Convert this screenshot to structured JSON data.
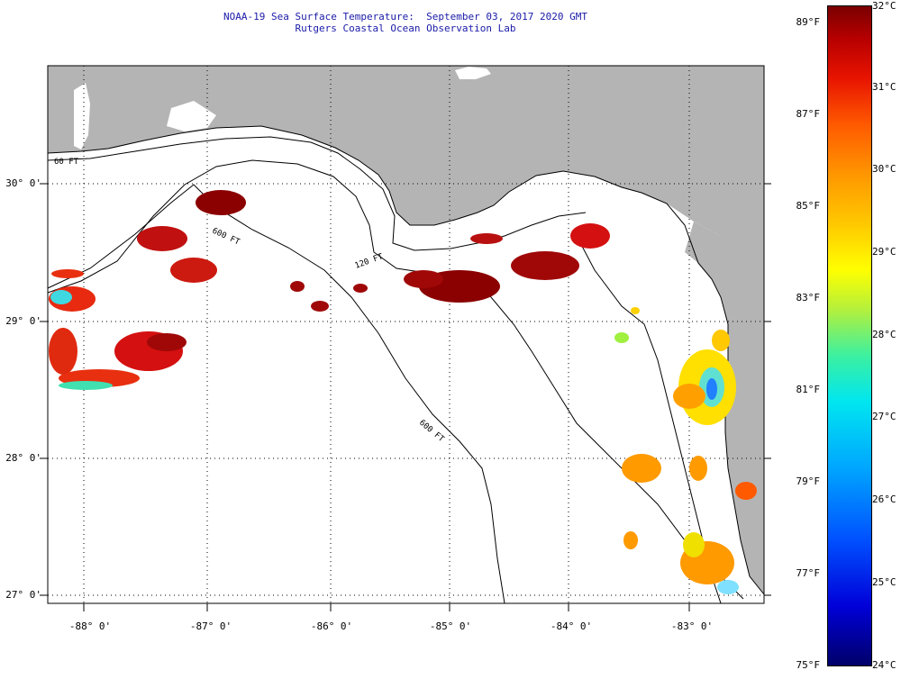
{
  "title": {
    "line1": "NOAA-19 Sea Surface Temperature:  September 03, 2017 2020 GMT",
    "line2": "Rutgers Coastal Ocean Observation Lab"
  },
  "map": {
    "lat_labels": [
      "30° 0'",
      "29° 0'",
      "28° 0'",
      "27° 0'"
    ],
    "lon_labels": [
      "-88° 0'",
      "-87° 0'",
      "-86° 0'",
      "-85° 0'",
      "-84° 0'",
      "-83° 0'"
    ],
    "depth_contours": [
      "60 FT",
      "120 FT",
      "600 FT",
      "600 FT"
    ],
    "land_color": "#b4b4b4",
    "ocean_color": "#ffffff"
  },
  "colorbar": {
    "fahrenheit_labels": [
      "89°F",
      "87°F",
      "85°F",
      "83°F",
      "81°F",
      "79°F",
      "77°F",
      "75°F"
    ],
    "celsius_labels": [
      "32°C",
      "31°C",
      "30°C",
      "29°C",
      "28°C",
      "27°C",
      "26°C",
      "25°C",
      "24°C"
    ]
  }
}
